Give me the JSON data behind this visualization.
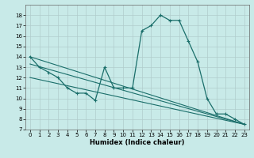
{
  "title": "",
  "xlabel": "Humidex (Indice chaleur)",
  "ylabel": "",
  "background_color": "#c8eae8",
  "grid_color": "#b0cccc",
  "line_color": "#1a6e6a",
  "xlim": [
    -0.5,
    23.5
  ],
  "ylim": [
    7,
    19
  ],
  "xticks": [
    0,
    1,
    2,
    3,
    4,
    5,
    6,
    7,
    8,
    9,
    10,
    11,
    12,
    13,
    14,
    15,
    16,
    17,
    18,
    19,
    20,
    21,
    22,
    23
  ],
  "yticks": [
    7,
    8,
    9,
    10,
    11,
    12,
    13,
    14,
    15,
    16,
    17,
    18
  ],
  "series": [
    {
      "x": [
        0,
        1,
        2,
        3,
        4,
        5,
        6,
        7,
        8,
        9,
        10,
        11,
        12,
        13,
        14,
        15,
        16,
        17,
        18,
        19,
        20,
        21,
        22,
        23
      ],
      "y": [
        14,
        13,
        12.5,
        12,
        11,
        10.5,
        10.5,
        9.8,
        13,
        11,
        11,
        11,
        16.5,
        17,
        18,
        17.5,
        17.5,
        15.5,
        13.5,
        10,
        8.5,
        8.5,
        8,
        7.5
      ]
    },
    {
      "x": [
        0,
        23
      ],
      "y": [
        14,
        7.5
      ]
    },
    {
      "x": [
        0,
        23
      ],
      "y": [
        13.3,
        7.5
      ]
    },
    {
      "x": [
        0,
        23
      ],
      "y": [
        12.0,
        7.5
      ]
    }
  ]
}
